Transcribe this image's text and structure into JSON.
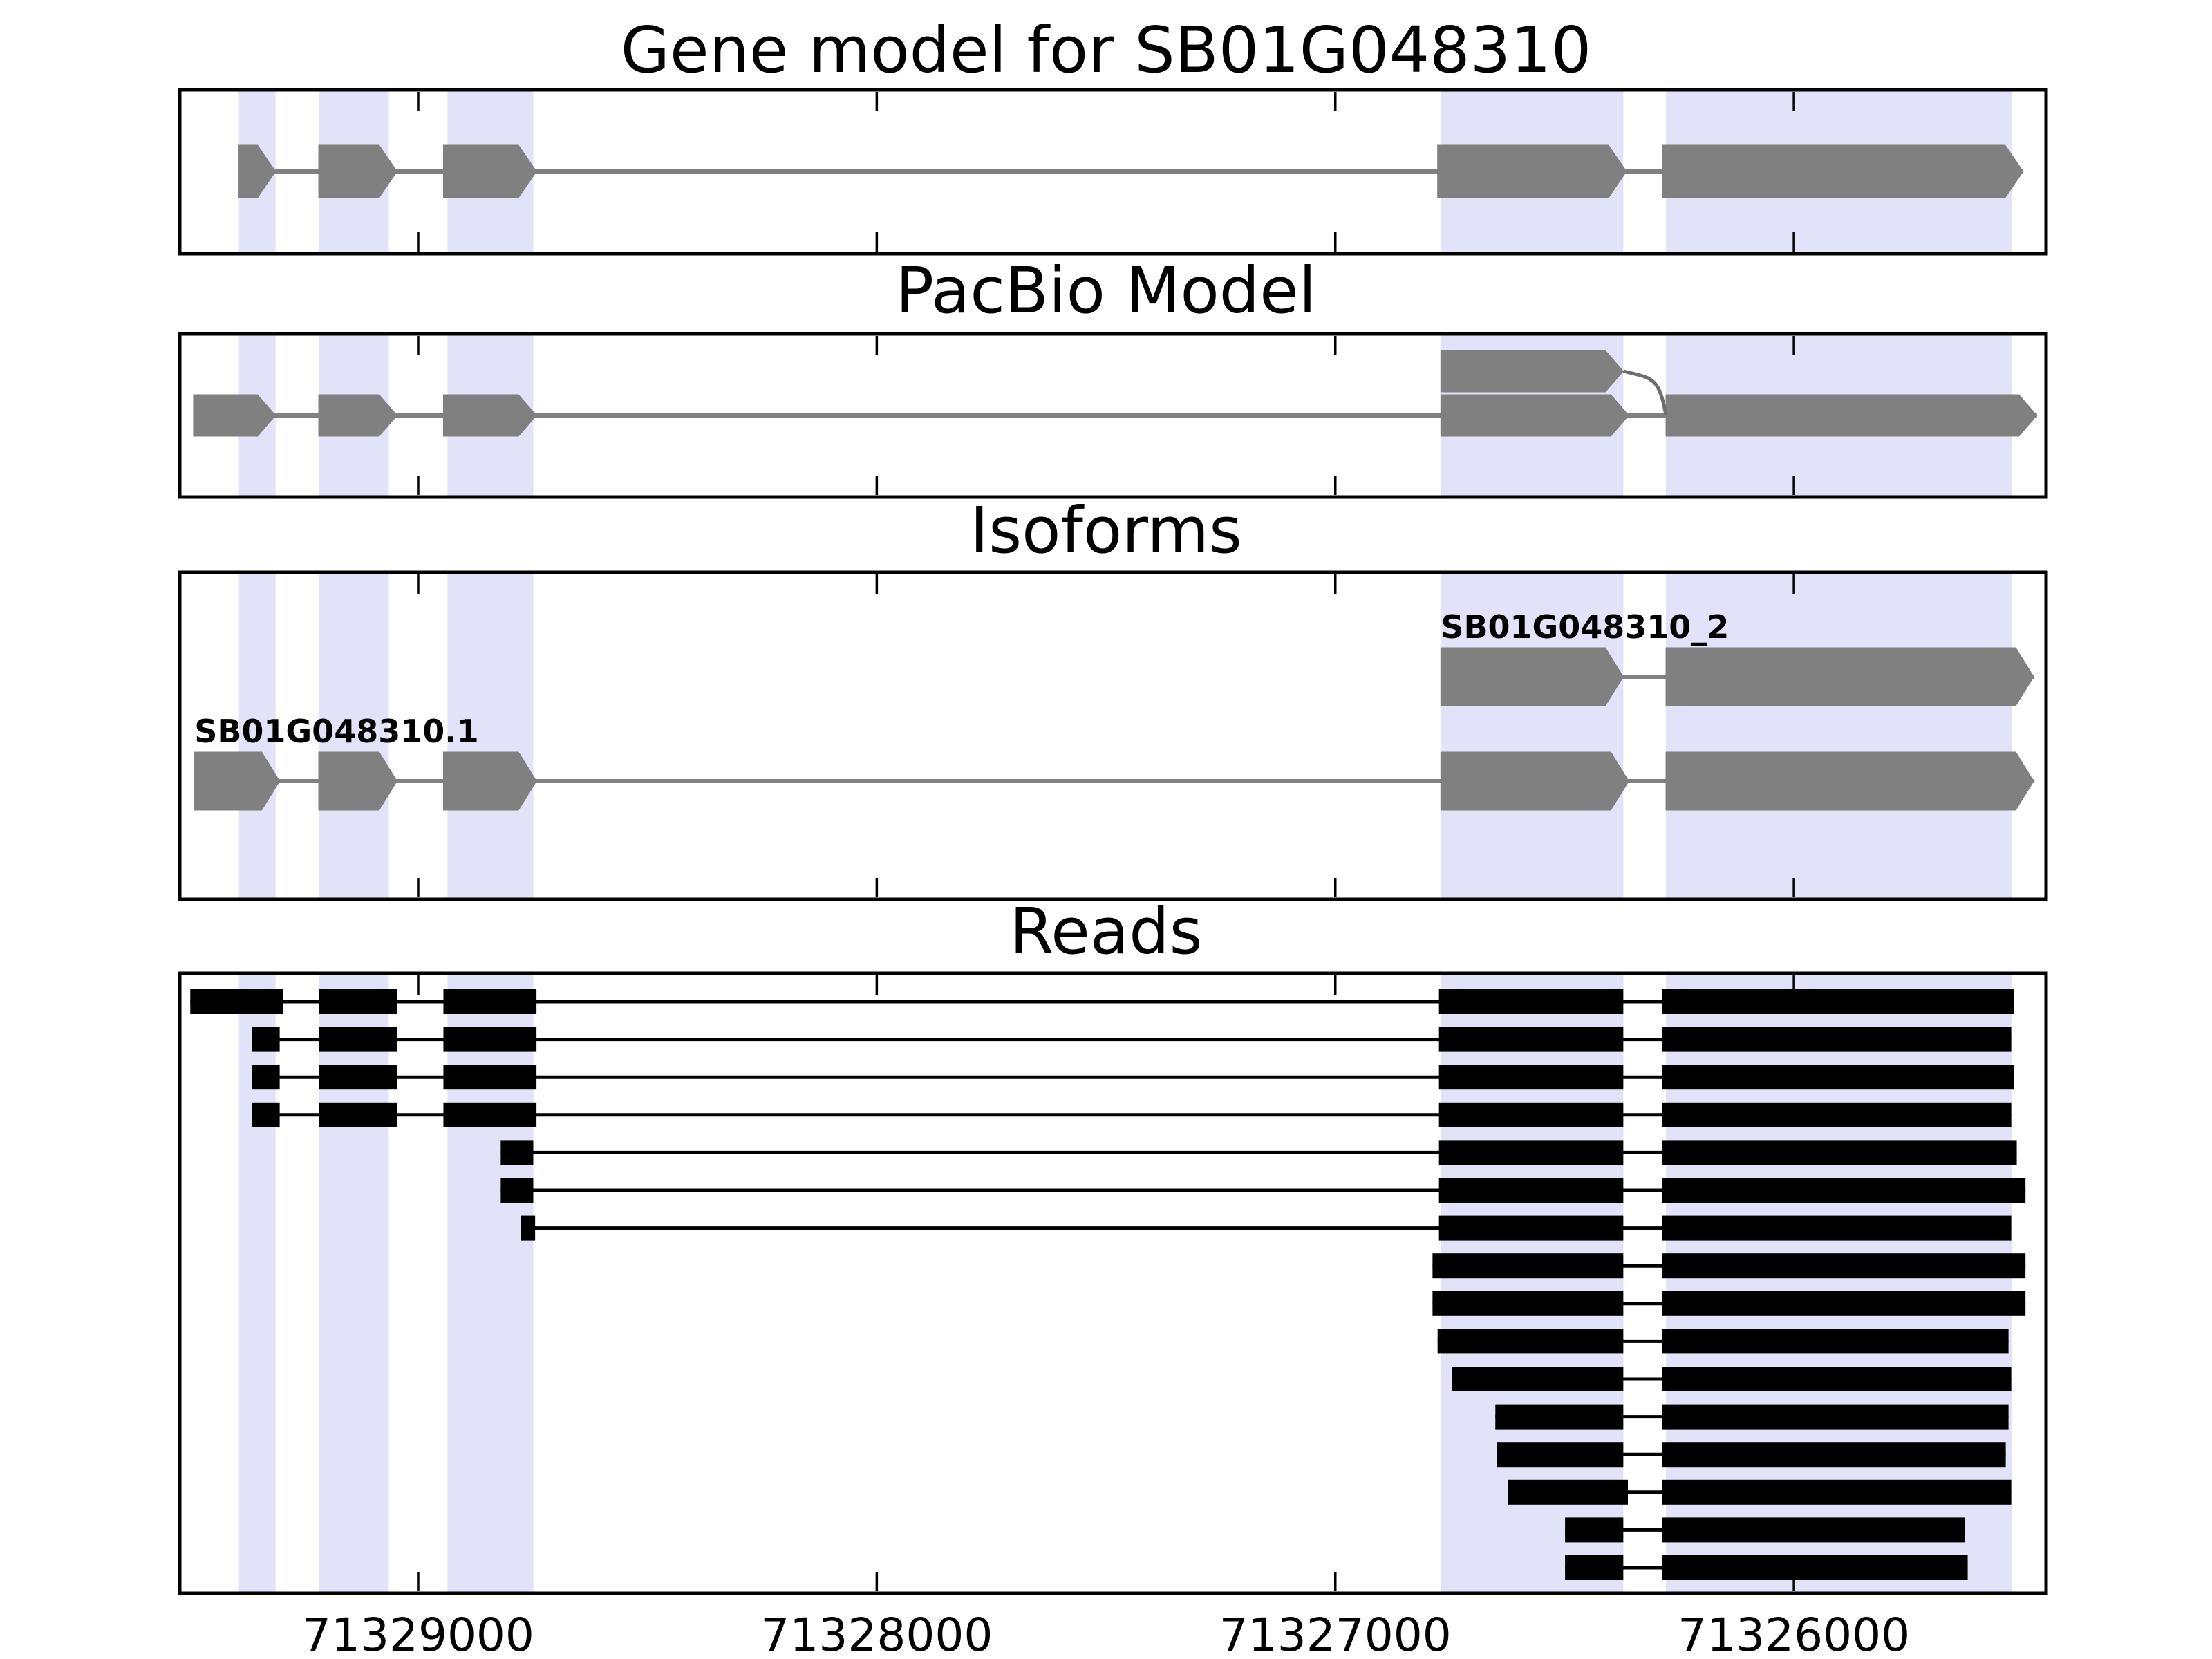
{
  "chart_data": {
    "type": "gene-structure-tracks",
    "title": "Gene model for SB01G048310",
    "grid": false,
    "axis": {
      "orientation": "reversed",
      "left_value": 71329520,
      "right_value": 71325450,
      "ticks": [
        {
          "value": 71329000,
          "label": "71329000"
        },
        {
          "value": 71328000,
          "label": "71328000"
        },
        {
          "value": 71327000,
          "label": "71327000"
        },
        {
          "value": 71326000,
          "label": "71326000"
        }
      ]
    },
    "highlight_bands": [
      {
        "s": 71329391,
        "e": 71329311
      },
      {
        "s": 71329217,
        "e": 71329064
      },
      {
        "s": 71328936,
        "e": 71328749
      },
      {
        "s": 71326770,
        "e": 71326372
      },
      {
        "s": 71326279,
        "e": 71325524
      }
    ],
    "panels": [
      {
        "title": "Gene model for SB01G048310",
        "transcripts": [
          {
            "track": 0,
            "exons": [
              [
                71329391,
                71329311
              ],
              [
                71329217,
                71329046
              ],
              [
                71328945,
                71328742
              ],
              [
                71326777,
                71326365
              ],
              [
                71326287,
                71325500
              ]
            ]
          }
        ]
      },
      {
        "title": "PacBio Model",
        "transcripts": [
          {
            "track": 0,
            "exons": [
              [
                71329490,
                71329311
              ],
              [
                71329217,
                71329046
              ],
              [
                71328945,
                71328742
              ],
              [
                71326770,
                71326360
              ],
              [
                71326279,
                71325470
              ]
            ]
          }
        ],
        "alt_blocks": [
          {
            "exon": [
              71326770,
              71326372
            ],
            "connects_to": 71326279
          }
        ]
      },
      {
        "title": "Isoforms",
        "transcripts": [
          {
            "name": "SB01G048310_2",
            "track": 0,
            "exons": [
              [
                71326770,
                71326372
              ],
              [
                71326279,
                71325477
              ]
            ]
          },
          {
            "name": "SB01G048310.1",
            "track": 1,
            "exons": [
              [
                71329488,
                71329302
              ],
              [
                71329217,
                71329046
              ],
              [
                71328945,
                71328742
              ],
              [
                71326770,
                71326360
              ],
              [
                71326279,
                71325477
              ]
            ]
          }
        ]
      },
      {
        "title": "Reads",
        "reads": [
          {
            "blocks": [
              [
                71329497,
                71329294
              ],
              [
                71329217,
                71329046
              ],
              [
                71328945,
                71328742
              ],
              [
                71326774,
                71326372
              ],
              [
                71326287,
                71325520
              ]
            ]
          },
          {
            "blocks": [
              [
                71329362,
                71329302
              ],
              [
                71329217,
                71329046
              ],
              [
                71328945,
                71328742
              ],
              [
                71326774,
                71326372
              ],
              [
                71326287,
                71325526
              ]
            ]
          },
          {
            "blocks": [
              [
                71329362,
                71329302
              ],
              [
                71329217,
                71329046
              ],
              [
                71328945,
                71328742
              ],
              [
                71326774,
                71326372
              ],
              [
                71326287,
                71325520
              ]
            ]
          },
          {
            "blocks": [
              [
                71329362,
                71329302
              ],
              [
                71329217,
                71329046
              ],
              [
                71328945,
                71328742
              ],
              [
                71326774,
                71326372
              ],
              [
                71326287,
                71325526
              ]
            ]
          },
          {
            "blocks": [
              [
                71328820,
                71328749
              ],
              [
                71326774,
                71326372
              ],
              [
                71326287,
                71325514
              ]
            ]
          },
          {
            "blocks": [
              [
                71328820,
                71328749
              ],
              [
                71326774,
                71326372
              ],
              [
                71326287,
                71325495
              ]
            ]
          },
          {
            "blocks": [
              [
                71328776,
                71328745
              ],
              [
                71326774,
                71326372
              ],
              [
                71326287,
                71325526
              ]
            ]
          },
          {
            "blocks": [
              [
                71326788,
                71326372
              ],
              [
                71326287,
                71325495
              ]
            ]
          },
          {
            "blocks": [
              [
                71326788,
                71326372
              ],
              [
                71326287,
                71325495
              ]
            ]
          },
          {
            "blocks": [
              [
                71326777,
                71326372
              ],
              [
                71326287,
                71325532
              ]
            ]
          },
          {
            "blocks": [
              [
                71326746,
                71326372
              ],
              [
                71326287,
                71325526
              ]
            ]
          },
          {
            "blocks": [
              [
                71326651,
                71326372
              ],
              [
                71326287,
                71325532
              ]
            ]
          },
          {
            "blocks": [
              [
                71326648,
                71326372
              ],
              [
                71326287,
                71325538
              ]
            ]
          },
          {
            "blocks": [
              [
                71326623,
                71326362
              ],
              [
                71326287,
                71325526
              ]
            ]
          },
          {
            "blocks": [
              [
                71326499,
                71326372
              ],
              [
                71326287,
                71325627
              ]
            ]
          },
          {
            "blocks": [
              [
                71326499,
                71326372
              ],
              [
                71326287,
                71325621
              ]
            ]
          }
        ]
      }
    ]
  },
  "colors": {
    "background": "#ffffff",
    "highlight_band": "#e2e2f8",
    "model_gray": "#808080",
    "model_line": "#808080",
    "splice_curve": "#6e6e6e",
    "read_black": "#000000",
    "panel_border": "#000000",
    "tick": "#000000",
    "text": "#000000"
  }
}
